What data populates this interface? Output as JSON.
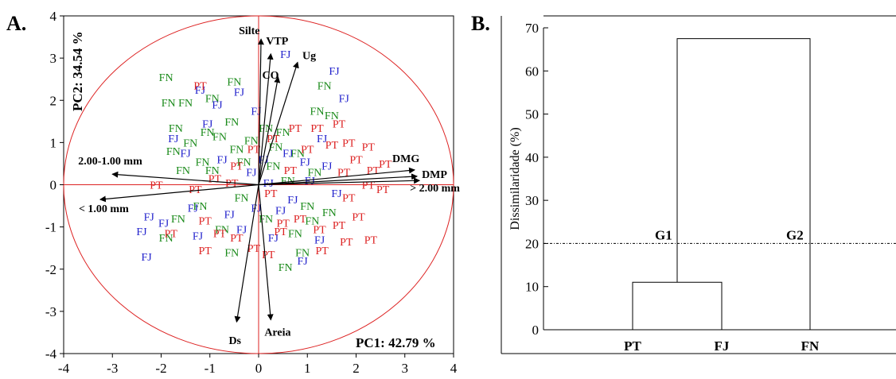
{
  "panel_a_label": "A.",
  "panel_b_label": "B.",
  "chart_data": [
    {
      "type": "scatter",
      "panel": "A",
      "pc1_label": "PC1: 42.79 %",
      "pc2_label": "PC2: 34.54 %",
      "xlim": [
        -4,
        4
      ],
      "ylim": [
        -4,
        4
      ],
      "xticks": [
        "-4",
        "-3",
        "-2",
        "-1",
        "0",
        "1",
        "2",
        "3",
        "4"
      ],
      "yticks": [
        "4",
        "3",
        "2",
        "1",
        "0",
        "-1",
        "-2",
        "-3",
        "-4"
      ],
      "circle_radius": 4,
      "colors": {
        "FN": "#1a8a1a",
        "FJ": "#2222cc",
        "PT": "#dd2222",
        "axes": "#dd2222"
      },
      "vectors": [
        {
          "name": "Silte",
          "x": 0.05,
          "y": 3.45
        },
        {
          "name": "VTP",
          "x": 0.25,
          "y": 3.1
        },
        {
          "name": "Ug",
          "x": 0.8,
          "y": 2.9
        },
        {
          "name": "CO",
          "x": 0.4,
          "y": 2.55
        },
        {
          "name": "DMG",
          "x": 3.2,
          "y": 0.35
        },
        {
          "name": "DMP",
          "x": 3.25,
          "y": 0.2
        },
        {
          "name": "> 2.00 mm",
          "x": 3.3,
          "y": 0.1
        },
        {
          "name": "2.00-1.00 mm",
          "x": -3.0,
          "y": 0.25
        },
        {
          "name": "< 1.00 mm",
          "x": -3.25,
          "y": -0.35
        },
        {
          "name": "Ds",
          "x": -0.45,
          "y": -3.25
        },
        {
          "name": "Areia",
          "x": 0.25,
          "y": -3.2
        }
      ],
      "points": [
        {
          "g": "FN",
          "x": -1.9,
          "y": 2.55
        },
        {
          "g": "FN",
          "x": -1.5,
          "y": 1.95
        },
        {
          "g": "FN",
          "x": -0.5,
          "y": 2.45
        },
        {
          "g": "FN",
          "x": -0.95,
          "y": 2.05
        },
        {
          "g": "FN",
          "x": -1.7,
          "y": 1.35
        },
        {
          "g": "FN",
          "x": -1.85,
          "y": 1.95
        },
        {
          "g": "FN",
          "x": -0.55,
          "y": 1.5
        },
        {
          "g": "FN",
          "x": -1.05,
          "y": 1.25
        },
        {
          "g": "FN",
          "x": -1.4,
          "y": 1.0
        },
        {
          "g": "FN",
          "x": -0.8,
          "y": 1.15
        },
        {
          "g": "FN",
          "x": -0.45,
          "y": 0.85
        },
        {
          "g": "FN",
          "x": -1.75,
          "y": 0.8
        },
        {
          "g": "FN",
          "x": -1.15,
          "y": 0.55
        },
        {
          "g": "FN",
          "x": -1.55,
          "y": 0.35
        },
        {
          "g": "FN",
          "x": -0.95,
          "y": 0.35
        },
        {
          "g": "FN",
          "x": -0.3,
          "y": 0.55
        },
        {
          "g": "FN",
          "x": 0.15,
          "y": 1.35
        },
        {
          "g": "FN",
          "x": 0.35,
          "y": 0.9
        },
        {
          "g": "FN",
          "x": 0.5,
          "y": 1.25
        },
        {
          "g": "FN",
          "x": 1.35,
          "y": 2.35
        },
        {
          "g": "FN",
          "x": 1.2,
          "y": 1.75
        },
        {
          "g": "FN",
          "x": 1.5,
          "y": 1.65
        },
        {
          "g": "FN",
          "x": 0.8,
          "y": 0.75
        },
        {
          "g": "FN",
          "x": 1.15,
          "y": 0.3
        },
        {
          "g": "FN",
          "x": 0.6,
          "y": 0.1
        },
        {
          "g": "FN",
          "x": -0.35,
          "y": -0.3
        },
        {
          "g": "FN",
          "x": -1.2,
          "y": -0.5
        },
        {
          "g": "FN",
          "x": -1.65,
          "y": -0.8
        },
        {
          "g": "FN",
          "x": -1.9,
          "y": -1.25
        },
        {
          "g": "FN",
          "x": -0.55,
          "y": -1.6
        },
        {
          "g": "FN",
          "x": -0.75,
          "y": -1.05
        },
        {
          "g": "FN",
          "x": 0.15,
          "y": -0.8
        },
        {
          "g": "FN",
          "x": 0.75,
          "y": -1.15
        },
        {
          "g": "FN",
          "x": 1.0,
          "y": -0.5
        },
        {
          "g": "FN",
          "x": 1.45,
          "y": -0.65
        },
        {
          "g": "FN",
          "x": 0.9,
          "y": -1.6
        },
        {
          "g": "FN",
          "x": 0.55,
          "y": -1.95
        },
        {
          "g": "FN",
          "x": 1.1,
          "y": -0.85
        },
        {
          "g": "FN",
          "x": 0.3,
          "y": 0.45
        },
        {
          "g": "FN",
          "x": -0.15,
          "y": 1.05
        },
        {
          "g": "FJ",
          "x": 1.55,
          "y": 2.7
        },
        {
          "g": "FJ",
          "x": 1.75,
          "y": 2.05
        },
        {
          "g": "FJ",
          "x": 0.55,
          "y": 3.1
        },
        {
          "g": "FJ",
          "x": -1.2,
          "y": 2.25
        },
        {
          "g": "FJ",
          "x": -0.85,
          "y": 1.9
        },
        {
          "g": "FJ",
          "x": -0.4,
          "y": 2.2
        },
        {
          "g": "FJ",
          "x": -0.05,
          "y": 1.75
        },
        {
          "g": "FJ",
          "x": -1.75,
          "y": 1.1
        },
        {
          "g": "FJ",
          "x": -1.05,
          "y": 1.45
        },
        {
          "g": "FJ",
          "x": -1.5,
          "y": 0.75
        },
        {
          "g": "FJ",
          "x": -0.75,
          "y": 0.6
        },
        {
          "g": "FJ",
          "x": -0.15,
          "y": 0.3
        },
        {
          "g": "FJ",
          "x": 0.2,
          "y": 0.05
        },
        {
          "g": "FJ",
          "x": 0.6,
          "y": 0.75
        },
        {
          "g": "FJ",
          "x": 0.95,
          "y": 0.55
        },
        {
          "g": "FJ",
          "x": 1.3,
          "y": 1.1
        },
        {
          "g": "FJ",
          "x": 1.4,
          "y": 0.45
        },
        {
          "g": "FJ",
          "x": 1.05,
          "y": 0.1
        },
        {
          "g": "FJ",
          "x": -2.25,
          "y": -0.75
        },
        {
          "g": "FJ",
          "x": -2.4,
          "y": -1.1
        },
        {
          "g": "FJ",
          "x": -1.95,
          "y": -0.9
        },
        {
          "g": "FJ",
          "x": -2.3,
          "y": -1.7
        },
        {
          "g": "FJ",
          "x": -1.35,
          "y": -0.55
        },
        {
          "g": "FJ",
          "x": -1.25,
          "y": -1.2
        },
        {
          "g": "FJ",
          "x": -0.6,
          "y": -0.7
        },
        {
          "g": "FJ",
          "x": -0.35,
          "y": -1.05
        },
        {
          "g": "FJ",
          "x": -0.05,
          "y": -0.55
        },
        {
          "g": "FJ",
          "x": 0.3,
          "y": -1.25
        },
        {
          "g": "FJ",
          "x": 0.7,
          "y": -0.35
        },
        {
          "g": "FJ",
          "x": 0.9,
          "y": -1.8
        },
        {
          "g": "FJ",
          "x": 1.25,
          "y": -1.3
        },
        {
          "g": "FJ",
          "x": 1.6,
          "y": -0.2
        },
        {
          "g": "FJ",
          "x": 0.45,
          "y": -0.6
        },
        {
          "g": "FJ",
          "x": 0.1,
          "y": 0.6
        },
        {
          "g": "PT",
          "x": 1.65,
          "y": 1.45
        },
        {
          "g": "PT",
          "x": 1.2,
          "y": 1.35
        },
        {
          "g": "PT",
          "x": 0.75,
          "y": 1.35
        },
        {
          "g": "PT",
          "x": 0.3,
          "y": 1.1
        },
        {
          "g": "PT",
          "x": -0.1,
          "y": 0.85
        },
        {
          "g": "PT",
          "x": -1.2,
          "y": 2.35
        },
        {
          "g": "PT",
          "x": 1.85,
          "y": 1.0
        },
        {
          "g": "PT",
          "x": 2.25,
          "y": 0.9
        },
        {
          "g": "PT",
          "x": 2.6,
          "y": 0.5
        },
        {
          "g": "PT",
          "x": 2.0,
          "y": 0.6
        },
        {
          "g": "PT",
          "x": 2.35,
          "y": 0.35
        },
        {
          "g": "PT",
          "x": 1.75,
          "y": 0.3
        },
        {
          "g": "PT",
          "x": 2.25,
          "y": 0.0
        },
        {
          "g": "PT",
          "x": 2.55,
          "y": -0.1
        },
        {
          "g": "PT",
          "x": 1.85,
          "y": -0.3
        },
        {
          "g": "PT",
          "x": 2.05,
          "y": -0.75
        },
        {
          "g": "PT",
          "x": 1.65,
          "y": -0.95
        },
        {
          "g": "PT",
          "x": 1.25,
          "y": -1.05
        },
        {
          "g": "PT",
          "x": 1.8,
          "y": -1.35
        },
        {
          "g": "PT",
          "x": 1.3,
          "y": -1.55
        },
        {
          "g": "PT",
          "x": 2.3,
          "y": -1.3
        },
        {
          "g": "PT",
          "x": 0.85,
          "y": -0.8
        },
        {
          "g": "PT",
          "x": 0.45,
          "y": -1.1
        },
        {
          "g": "PT",
          "x": 0.2,
          "y": -1.65
        },
        {
          "g": "PT",
          "x": -0.1,
          "y": -1.5
        },
        {
          "g": "PT",
          "x": -0.45,
          "y": -1.25
        },
        {
          "g": "PT",
          "x": -0.8,
          "y": -1.15
        },
        {
          "g": "PT",
          "x": -1.1,
          "y": -0.85
        },
        {
          "g": "PT",
          "x": -1.8,
          "y": -1.15
        },
        {
          "g": "PT",
          "x": -2.1,
          "y": 0.0
        },
        {
          "g": "PT",
          "x": -1.3,
          "y": -0.1
        },
        {
          "g": "PT",
          "x": -0.9,
          "y": 0.15
        },
        {
          "g": "PT",
          "x": -0.55,
          "y": 0.05
        },
        {
          "g": "PT",
          "x": 0.25,
          "y": -0.2
        },
        {
          "g": "PT",
          "x": 0.65,
          "y": 0.35
        },
        {
          "g": "PT",
          "x": 1.0,
          "y": 0.85
        },
        {
          "g": "PT",
          "x": -0.45,
          "y": 0.45
        },
        {
          "g": "PT",
          "x": 0.5,
          "y": -0.9
        },
        {
          "g": "PT",
          "x": 1.5,
          "y": 0.95
        },
        {
          "g": "PT",
          "x": -1.1,
          "y": -1.55
        }
      ]
    },
    {
      "type": "dendrogram",
      "panel": "B",
      "ylabel": "Dissimilaridade (%)",
      "ylim": [
        0,
        70
      ],
      "yticks": [
        "0",
        "10",
        "20",
        "30",
        "40",
        "50",
        "60",
        "70"
      ],
      "leaves": [
        "PT",
        "FJ",
        "FN"
      ],
      "merges": [
        {
          "left": "PT",
          "right": "FJ",
          "height": 11
        },
        {
          "left": "PT+FJ",
          "right": "FN",
          "height": 67.5
        }
      ],
      "cut_height": 20,
      "group_labels": [
        "G1",
        "G2"
      ]
    }
  ]
}
